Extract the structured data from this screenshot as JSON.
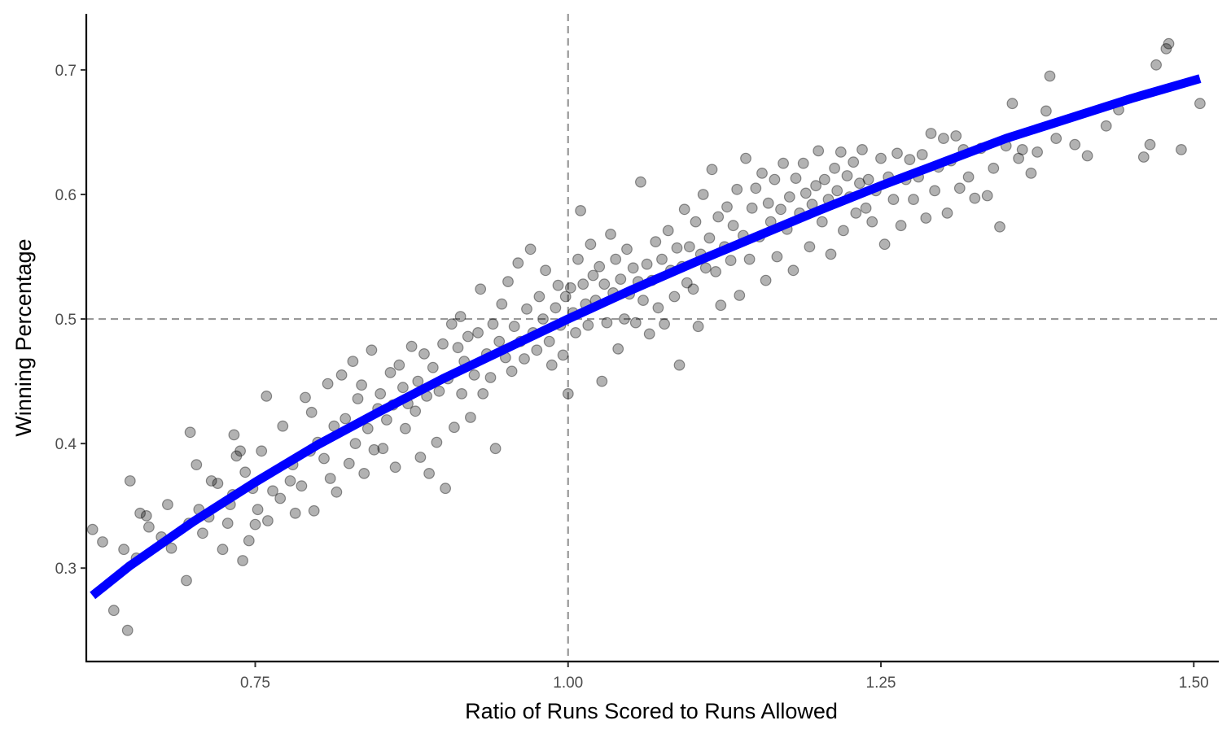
{
  "chart_data": {
    "type": "scatter",
    "title": "",
    "xlabel": "Ratio of Runs Scored to Runs Allowed",
    "ylabel": "Winning Percentage",
    "xlim": [
      0.615,
      1.52
    ],
    "ylim": [
      0.225,
      0.745
    ],
    "x_ticks": [
      0.75,
      1.0,
      1.25,
      1.5
    ],
    "x_tick_labels": [
      "0.75",
      "1.00",
      "1.25",
      "1.50"
    ],
    "y_ticks": [
      0.3,
      0.4,
      0.5,
      0.6,
      0.7
    ],
    "y_tick_labels": [
      "0.3",
      "0.4",
      "0.5",
      "0.6",
      "0.7"
    ],
    "grid": false,
    "reference_lines": {
      "vertical_x": 1.0,
      "horizontal_y": 0.5,
      "style": "dashed",
      "color": "#999999"
    },
    "colors": {
      "points": "#000000",
      "fit_line": "#0000ff"
    },
    "point_opacity": 0.3,
    "fit_curve": {
      "name": "fit",
      "x": [
        0.62,
        0.65,
        0.7,
        0.75,
        0.8,
        0.85,
        0.9,
        0.95,
        1.0,
        1.05,
        1.1,
        1.15,
        1.2,
        1.25,
        1.3,
        1.35,
        1.4,
        1.45,
        1.505
      ],
      "y": [
        0.278,
        0.302,
        0.337,
        0.369,
        0.399,
        0.426,
        0.452,
        0.476,
        0.5,
        0.523,
        0.545,
        0.566,
        0.587,
        0.607,
        0.626,
        0.645,
        0.661,
        0.677,
        0.693
      ]
    },
    "points": [
      [
        0.62,
        0.331
      ],
      [
        0.628,
        0.321
      ],
      [
        0.637,
        0.266
      ],
      [
        0.645,
        0.315
      ],
      [
        0.648,
        0.25
      ],
      [
        0.65,
        0.37
      ],
      [
        0.655,
        0.308
      ],
      [
        0.658,
        0.344
      ],
      [
        0.663,
        0.342
      ],
      [
        0.665,
        0.333
      ],
      [
        0.675,
        0.325
      ],
      [
        0.68,
        0.351
      ],
      [
        0.683,
        0.316
      ],
      [
        0.695,
        0.29
      ],
      [
        0.697,
        0.336
      ],
      [
        0.698,
        0.409
      ],
      [
        0.703,
        0.383
      ],
      [
        0.705,
        0.347
      ],
      [
        0.708,
        0.328
      ],
      [
        0.713,
        0.341
      ],
      [
        0.715,
        0.37
      ],
      [
        0.72,
        0.368
      ],
      [
        0.724,
        0.315
      ],
      [
        0.728,
        0.336
      ],
      [
        0.73,
        0.351
      ],
      [
        0.732,
        0.359
      ],
      [
        0.733,
        0.407
      ],
      [
        0.735,
        0.39
      ],
      [
        0.738,
        0.394
      ],
      [
        0.74,
        0.306
      ],
      [
        0.742,
        0.377
      ],
      [
        0.745,
        0.322
      ],
      [
        0.748,
        0.364
      ],
      [
        0.75,
        0.335
      ],
      [
        0.752,
        0.347
      ],
      [
        0.755,
        0.394
      ],
      [
        0.759,
        0.438
      ],
      [
        0.76,
        0.338
      ],
      [
        0.764,
        0.362
      ],
      [
        0.77,
        0.356
      ],
      [
        0.772,
        0.414
      ],
      [
        0.778,
        0.37
      ],
      [
        0.78,
        0.383
      ],
      [
        0.782,
        0.344
      ],
      [
        0.787,
        0.366
      ],
      [
        0.79,
        0.437
      ],
      [
        0.794,
        0.394
      ],
      [
        0.795,
        0.425
      ],
      [
        0.797,
        0.346
      ],
      [
        0.8,
        0.401
      ],
      [
        0.805,
        0.388
      ],
      [
        0.808,
        0.448
      ],
      [
        0.81,
        0.372
      ],
      [
        0.813,
        0.414
      ],
      [
        0.815,
        0.361
      ],
      [
        0.819,
        0.455
      ],
      [
        0.822,
        0.42
      ],
      [
        0.825,
        0.384
      ],
      [
        0.828,
        0.466
      ],
      [
        0.83,
        0.4
      ],
      [
        0.832,
        0.436
      ],
      [
        0.835,
        0.447
      ],
      [
        0.837,
        0.376
      ],
      [
        0.84,
        0.412
      ],
      [
        0.843,
        0.475
      ],
      [
        0.845,
        0.395
      ],
      [
        0.848,
        0.428
      ],
      [
        0.85,
        0.44
      ],
      [
        0.852,
        0.396
      ],
      [
        0.855,
        0.419
      ],
      [
        0.858,
        0.457
      ],
      [
        0.86,
        0.431
      ],
      [
        0.862,
        0.381
      ],
      [
        0.865,
        0.463
      ],
      [
        0.868,
        0.445
      ],
      [
        0.87,
        0.412
      ],
      [
        0.872,
        0.432
      ],
      [
        0.875,
        0.478
      ],
      [
        0.878,
        0.426
      ],
      [
        0.88,
        0.45
      ],
      [
        0.882,
        0.389
      ],
      [
        0.885,
        0.472
      ],
      [
        0.887,
        0.438
      ],
      [
        0.889,
        0.376
      ],
      [
        0.892,
        0.461
      ],
      [
        0.895,
        0.401
      ],
      [
        0.897,
        0.442
      ],
      [
        0.9,
        0.48
      ],
      [
        0.902,
        0.364
      ],
      [
        0.904,
        0.452
      ],
      [
        0.907,
        0.496
      ],
      [
        0.909,
        0.413
      ],
      [
        0.912,
        0.477
      ],
      [
        0.914,
        0.502
      ],
      [
        0.915,
        0.44
      ],
      [
        0.917,
        0.466
      ],
      [
        0.92,
        0.486
      ],
      [
        0.922,
        0.421
      ],
      [
        0.925,
        0.455
      ],
      [
        0.928,
        0.489
      ],
      [
        0.93,
        0.524
      ],
      [
        0.932,
        0.44
      ],
      [
        0.935,
        0.472
      ],
      [
        0.938,
        0.453
      ],
      [
        0.94,
        0.496
      ],
      [
        0.942,
        0.396
      ],
      [
        0.945,
        0.482
      ],
      [
        0.947,
        0.512
      ],
      [
        0.95,
        0.469
      ],
      [
        0.952,
        0.53
      ],
      [
        0.955,
        0.458
      ],
      [
        0.957,
        0.494
      ],
      [
        0.96,
        0.545
      ],
      [
        0.962,
        0.482
      ],
      [
        0.965,
        0.468
      ],
      [
        0.967,
        0.508
      ],
      [
        0.97,
        0.556
      ],
      [
        0.972,
        0.489
      ],
      [
        0.975,
        0.475
      ],
      [
        0.977,
        0.518
      ],
      [
        0.98,
        0.5
      ],
      [
        0.982,
        0.539
      ],
      [
        0.985,
        0.482
      ],
      [
        0.987,
        0.463
      ],
      [
        0.99,
        0.509
      ],
      [
        0.992,
        0.527
      ],
      [
        0.994,
        0.495
      ],
      [
        0.996,
        0.471
      ],
      [
        0.998,
        0.518
      ],
      [
        1.0,
        0.44
      ],
      [
        1.002,
        0.525
      ],
      [
        1.004,
        0.505
      ],
      [
        1.006,
        0.489
      ],
      [
        1.008,
        0.548
      ],
      [
        1.01,
        0.587
      ],
      [
        1.012,
        0.528
      ],
      [
        1.014,
        0.512
      ],
      [
        1.016,
        0.495
      ],
      [
        1.018,
        0.56
      ],
      [
        1.02,
        0.535
      ],
      [
        1.022,
        0.515
      ],
      [
        1.025,
        0.542
      ],
      [
        1.027,
        0.45
      ],
      [
        1.029,
        0.528
      ],
      [
        1.031,
        0.497
      ],
      [
        1.034,
        0.568
      ],
      [
        1.036,
        0.521
      ],
      [
        1.038,
        0.548
      ],
      [
        1.04,
        0.476
      ],
      [
        1.042,
        0.532
      ],
      [
        1.045,
        0.5
      ],
      [
        1.047,
        0.556
      ],
      [
        1.049,
        0.52
      ],
      [
        1.052,
        0.541
      ],
      [
        1.054,
        0.497
      ],
      [
        1.056,
        0.53
      ],
      [
        1.058,
        0.61
      ],
      [
        1.06,
        0.515
      ],
      [
        1.063,
        0.544
      ],
      [
        1.065,
        0.488
      ],
      [
        1.067,
        0.531
      ],
      [
        1.07,
        0.562
      ],
      [
        1.072,
        0.509
      ],
      [
        1.075,
        0.548
      ],
      [
        1.077,
        0.496
      ],
      [
        1.08,
        0.571
      ],
      [
        1.082,
        0.539
      ],
      [
        1.085,
        0.518
      ],
      [
        1.087,
        0.557
      ],
      [
        1.089,
        0.463
      ],
      [
        1.091,
        0.542
      ],
      [
        1.093,
        0.588
      ],
      [
        1.095,
        0.529
      ],
      [
        1.097,
        0.558
      ],
      [
        1.1,
        0.524
      ],
      [
        1.102,
        0.578
      ],
      [
        1.104,
        0.494
      ],
      [
        1.106,
        0.552
      ],
      [
        1.108,
        0.6
      ],
      [
        1.11,
        0.541
      ],
      [
        1.113,
        0.565
      ],
      [
        1.115,
        0.62
      ],
      [
        1.118,
        0.538
      ],
      [
        1.12,
        0.582
      ],
      [
        1.122,
        0.511
      ],
      [
        1.125,
        0.558
      ],
      [
        1.127,
        0.59
      ],
      [
        1.13,
        0.547
      ],
      [
        1.132,
        0.575
      ],
      [
        1.135,
        0.604
      ],
      [
        1.137,
        0.519
      ],
      [
        1.14,
        0.567
      ],
      [
        1.142,
        0.629
      ],
      [
        1.145,
        0.548
      ],
      [
        1.147,
        0.589
      ],
      [
        1.15,
        0.605
      ],
      [
        1.153,
        0.566
      ],
      [
        1.155,
        0.617
      ],
      [
        1.158,
        0.531
      ],
      [
        1.16,
        0.593
      ],
      [
        1.162,
        0.578
      ],
      [
        1.165,
        0.612
      ],
      [
        1.167,
        0.55
      ],
      [
        1.17,
        0.588
      ],
      [
        1.172,
        0.625
      ],
      [
        1.175,
        0.572
      ],
      [
        1.177,
        0.598
      ],
      [
        1.18,
        0.539
      ],
      [
        1.182,
        0.613
      ],
      [
        1.185,
        0.585
      ],
      [
        1.188,
        0.625
      ],
      [
        1.19,
        0.601
      ],
      [
        1.193,
        0.558
      ],
      [
        1.195,
        0.592
      ],
      [
        1.198,
        0.607
      ],
      [
        1.2,
        0.635
      ],
      [
        1.203,
        0.578
      ],
      [
        1.205,
        0.612
      ],
      [
        1.208,
        0.596
      ],
      [
        1.21,
        0.552
      ],
      [
        1.213,
        0.621
      ],
      [
        1.215,
        0.603
      ],
      [
        1.218,
        0.634
      ],
      [
        1.22,
        0.571
      ],
      [
        1.223,
        0.615
      ],
      [
        1.225,
        0.598
      ],
      [
        1.228,
        0.626
      ],
      [
        1.23,
        0.585
      ],
      [
        1.233,
        0.609
      ],
      [
        1.235,
        0.636
      ],
      [
        1.238,
        0.589
      ],
      [
        1.24,
        0.612
      ],
      [
        1.243,
        0.578
      ],
      [
        1.246,
        0.603
      ],
      [
        1.25,
        0.629
      ],
      [
        1.253,
        0.56
      ],
      [
        1.256,
        0.614
      ],
      [
        1.26,
        0.596
      ],
      [
        1.263,
        0.633
      ],
      [
        1.266,
        0.575
      ],
      [
        1.27,
        0.612
      ],
      [
        1.273,
        0.628
      ],
      [
        1.276,
        0.596
      ],
      [
        1.28,
        0.614
      ],
      [
        1.283,
        0.632
      ],
      [
        1.286,
        0.581
      ],
      [
        1.29,
        0.649
      ],
      [
        1.293,
        0.603
      ],
      [
        1.296,
        0.622
      ],
      [
        1.3,
        0.645
      ],
      [
        1.303,
        0.585
      ],
      [
        1.306,
        0.627
      ],
      [
        1.31,
        0.647
      ],
      [
        1.313,
        0.605
      ],
      [
        1.316,
        0.636
      ],
      [
        1.32,
        0.614
      ],
      [
        1.325,
        0.597
      ],
      [
        1.33,
        0.637
      ],
      [
        1.335,
        0.599
      ],
      [
        1.34,
        0.621
      ],
      [
        1.345,
        0.574
      ],
      [
        1.35,
        0.639
      ],
      [
        1.355,
        0.673
      ],
      [
        1.36,
        0.629
      ],
      [
        1.363,
        0.636
      ],
      [
        1.37,
        0.617
      ],
      [
        1.375,
        0.634
      ],
      [
        1.382,
        0.667
      ],
      [
        1.385,
        0.695
      ],
      [
        1.39,
        0.645
      ],
      [
        1.405,
        0.64
      ],
      [
        1.415,
        0.631
      ],
      [
        1.43,
        0.655
      ],
      [
        1.44,
        0.668
      ],
      [
        1.46,
        0.63
      ],
      [
        1.465,
        0.64
      ],
      [
        1.47,
        0.704
      ],
      [
        1.478,
        0.717
      ],
      [
        1.48,
        0.721
      ],
      [
        1.49,
        0.636
      ],
      [
        1.505,
        0.673
      ]
    ]
  }
}
